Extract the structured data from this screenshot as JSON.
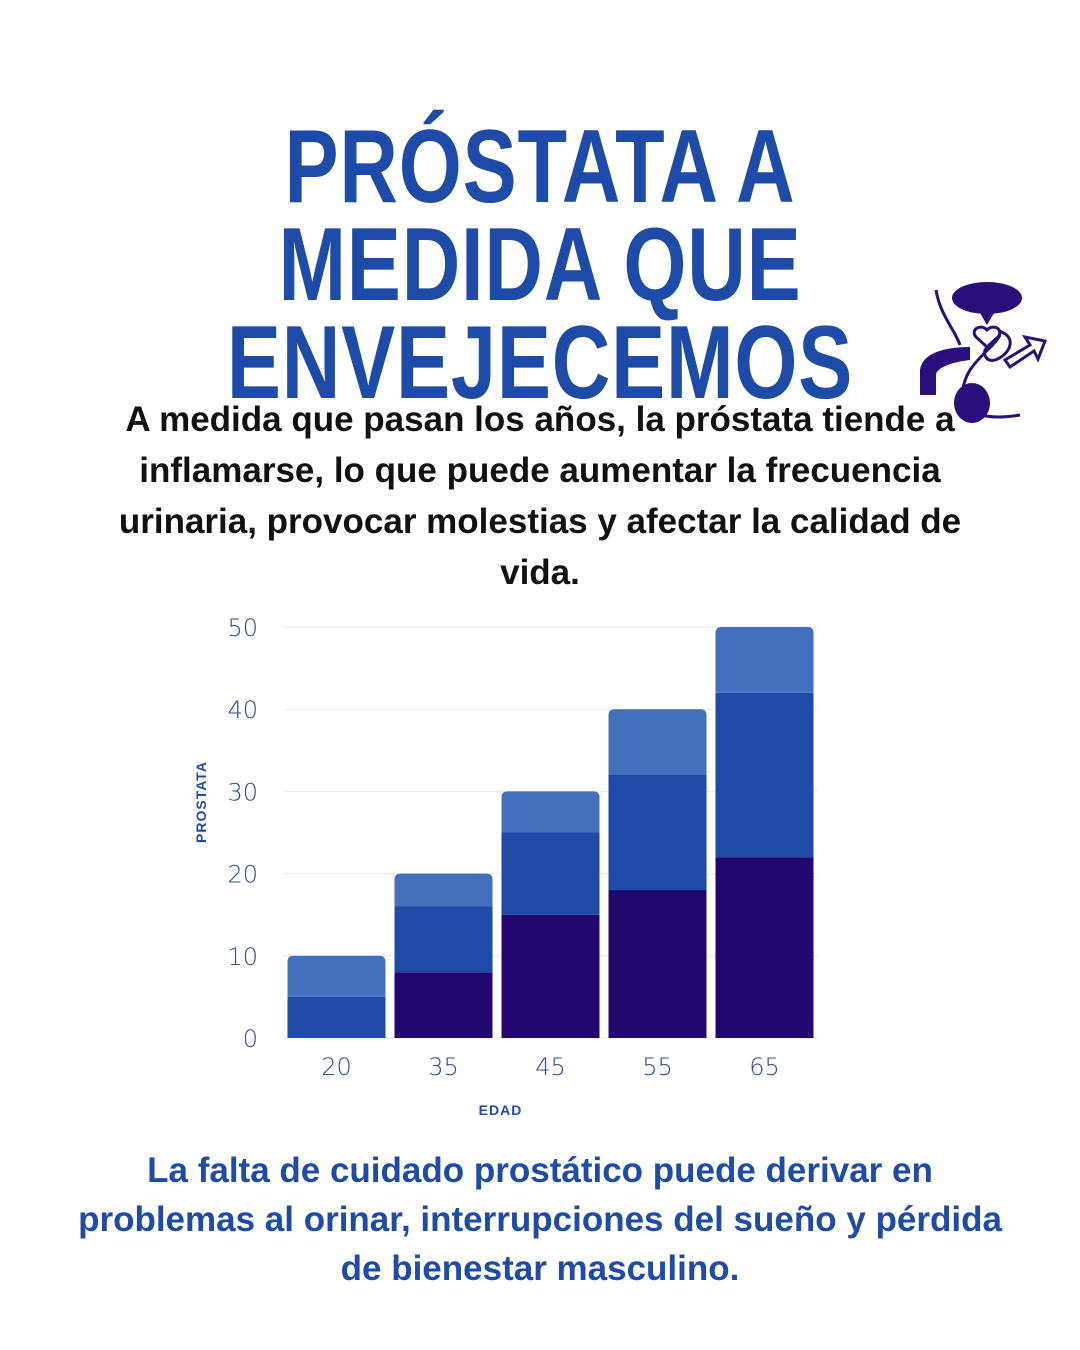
{
  "title": {
    "line1": "PRÓSTATA A MEDIDA QUE",
    "line2": "ENVEJECEMOS"
  },
  "intro_text": "A medida que pasan los años, la próstata tiende a inflamarse, lo que puede aumentar la frecuencia urinaria, provocar molestias y afectar la calidad de vida.",
  "outro_text": "La falta de cuidado prostático puede derivar en problemas al orinar, interrupciones del sueño y pérdida de bienestar masculino.",
  "icon": {
    "name": "prostate-anatomy-icon",
    "color": "#2a0e7a"
  },
  "colors": {
    "title": "#1e4aa8",
    "segment_bottom": "#22086e",
    "segment_middle": "#1e4aa8",
    "segment_top": "#4370bd",
    "grid": "#e6e9ef"
  },
  "chart_data": {
    "type": "bar",
    "stacked": true,
    "categories": [
      "20",
      "35",
      "45",
      "55",
      "65"
    ],
    "series": [
      {
        "values": [
          0,
          8,
          15,
          18,
          22
        ]
      },
      {
        "values": [
          5,
          8,
          10,
          14,
          20
        ]
      },
      {
        "values": [
          5,
          4,
          5,
          8,
          8
        ]
      }
    ],
    "xlabel": "EDAD",
    "ylabel": "PROSTATA",
    "ylim": [
      0,
      50
    ],
    "yticks": [
      0,
      10,
      20,
      30,
      40,
      50
    ],
    "grid": true,
    "legend": "none"
  }
}
